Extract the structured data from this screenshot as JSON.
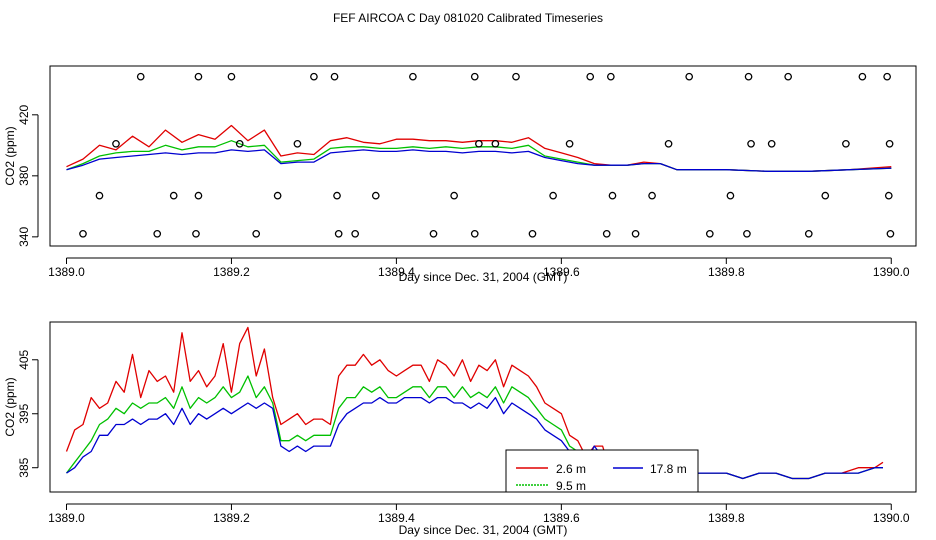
{
  "title": "FEF AIRCOA C  Day 081020  Calibrated Timeseries",
  "colors": {
    "s1": "#e00000",
    "s2": "#00c000",
    "s3": "#0000d0",
    "axis": "#000000"
  },
  "chart_data": [
    {
      "type": "line",
      "panel": "top",
      "xlabel": "Day since Dec. 31, 2004 (GMT)",
      "ylabel": "CO2 (ppm)",
      "xlim": [
        1388.98,
        1390.03
      ],
      "ylim": [
        334,
        452
      ],
      "xticks": [
        1389.0,
        1389.2,
        1389.4,
        1389.6,
        1389.8,
        1390.0
      ],
      "xtick_labels": [
        "1389.0",
        "1389.2",
        "1389.4",
        "1389.6",
        "1389.8",
        "1390.0"
      ],
      "yticks": [
        340,
        380,
        420
      ],
      "ytick_labels": [
        "340",
        "380",
        "420"
      ],
      "series": [
        {
          "name": "2.6 m",
          "color_key": "s1",
          "x": [
            1389.0,
            1389.02,
            1389.04,
            1389.06,
            1389.08,
            1389.1,
            1389.12,
            1389.14,
            1389.16,
            1389.18,
            1389.2,
            1389.22,
            1389.24,
            1389.26,
            1389.28,
            1389.3,
            1389.32,
            1389.34,
            1389.36,
            1389.38,
            1389.4,
            1389.42,
            1389.44,
            1389.46,
            1389.48,
            1389.5,
            1389.52,
            1389.54,
            1389.56,
            1389.58,
            1389.6,
            1389.62,
            1389.64,
            1389.66,
            1389.68,
            1389.7,
            1389.72,
            1389.74,
            1389.76,
            1389.78,
            1389.8,
            1389.85,
            1389.9,
            1389.95,
            1390.0
          ],
          "y": [
            386,
            391,
            400,
            397,
            406,
            399,
            410,
            402,
            407,
            404,
            413,
            403,
            410,
            393,
            395,
            394,
            403,
            405,
            402,
            401,
            404,
            404,
            403,
            403,
            402,
            403,
            403,
            402,
            405,
            398,
            395,
            392,
            388,
            387,
            387,
            389,
            388,
            384,
            384,
            384,
            384,
            383,
            383,
            384,
            386
          ]
        },
        {
          "name": "9.5 m",
          "color_key": "s2",
          "x": [
            1389.0,
            1389.02,
            1389.04,
            1389.06,
            1389.08,
            1389.1,
            1389.12,
            1389.14,
            1389.16,
            1389.18,
            1389.2,
            1389.22,
            1389.24,
            1389.26,
            1389.28,
            1389.3,
            1389.32,
            1389.34,
            1389.36,
            1389.38,
            1389.4,
            1389.42,
            1389.44,
            1389.46,
            1389.48,
            1389.5,
            1389.52,
            1389.54,
            1389.56,
            1389.58,
            1389.6,
            1389.62,
            1389.64,
            1389.66,
            1389.68,
            1389.7,
            1389.72,
            1389.74,
            1389.76,
            1389.78,
            1389.8,
            1389.85,
            1389.9,
            1389.95,
            1390.0
          ],
          "y": [
            384,
            388,
            393,
            395,
            396,
            396,
            400,
            397,
            399,
            399,
            403,
            399,
            400,
            389,
            390,
            391,
            398,
            399,
            399,
            398,
            398,
            399,
            398,
            399,
            398,
            399,
            399,
            398,
            400,
            393,
            391,
            389,
            387,
            387,
            387,
            388,
            388,
            384,
            384,
            384,
            384,
            383,
            383,
            384,
            385
          ]
        },
        {
          "name": "17.8 m",
          "color_key": "s3",
          "x": [
            1389.0,
            1389.02,
            1389.04,
            1389.06,
            1389.08,
            1389.1,
            1389.12,
            1389.14,
            1389.16,
            1389.18,
            1389.2,
            1389.22,
            1389.24,
            1389.26,
            1389.28,
            1389.3,
            1389.32,
            1389.34,
            1389.36,
            1389.38,
            1389.4,
            1389.42,
            1389.44,
            1389.46,
            1389.48,
            1389.5,
            1389.52,
            1389.54,
            1389.56,
            1389.58,
            1389.6,
            1389.62,
            1389.64,
            1389.66,
            1389.68,
            1389.7,
            1389.72,
            1389.74,
            1389.76,
            1389.78,
            1389.8,
            1389.85,
            1389.9,
            1389.95,
            1390.0
          ],
          "y": [
            384,
            387,
            391,
            392,
            393,
            394,
            395,
            394,
            395,
            395,
            397,
            396,
            397,
            388,
            389,
            389,
            395,
            396,
            397,
            396,
            396,
            397,
            396,
            396,
            395,
            396,
            396,
            395,
            396,
            392,
            390,
            388,
            387,
            387,
            387,
            388,
            388,
            384,
            384,
            384,
            384,
            383,
            383,
            384,
            385
          ]
        }
      ],
      "scatter": {
        "name": "markers",
        "x": [
          1389.02,
          1389.04,
          1389.06,
          1389.09,
          1389.11,
          1389.13,
          1389.157,
          1389.16,
          1389.16,
          1389.2,
          1389.21,
          1389.23,
          1389.256,
          1389.28,
          1389.3,
          1389.325,
          1389.328,
          1389.33,
          1389.35,
          1389.375,
          1389.42,
          1389.445,
          1389.47,
          1389.495,
          1389.495,
          1389.5,
          1389.52,
          1389.545,
          1389.565,
          1389.59,
          1389.61,
          1389.635,
          1389.655,
          1389.66,
          1389.662,
          1389.69,
          1389.71,
          1389.73,
          1389.755,
          1389.78,
          1389.805,
          1389.825,
          1389.827,
          1389.83,
          1389.855,
          1389.875,
          1389.9,
          1389.92,
          1389.945,
          1389.965,
          1389.995,
          1389.997,
          1389.998,
          1389.999
        ],
        "y": [
          342,
          367,
          401,
          445,
          342,
          367,
          342,
          445,
          367,
          445,
          401,
          342,
          367,
          401,
          445,
          445,
          367,
          342,
          342,
          367,
          445,
          342,
          367,
          445,
          342,
          401,
          401,
          445,
          342,
          367,
          401,
          445,
          342,
          445,
          367,
          342,
          367,
          401,
          445,
          342,
          367,
          342,
          445,
          401,
          401,
          445,
          342,
          367,
          401,
          445,
          445,
          367,
          401,
          342
        ]
      }
    },
    {
      "type": "line",
      "panel": "bottom",
      "xlabel": "Day since Dec. 31, 2004 (GMT)",
      "ylabel": "CO2 (ppm)",
      "xlim": [
        1388.98,
        1390.03
      ],
      "ylim": [
        380.5,
        412
      ],
      "xticks": [
        1389.0,
        1389.2,
        1389.4,
        1389.6,
        1389.8,
        1390.0
      ],
      "xtick_labels": [
        "1389.0",
        "1389.2",
        "1389.4",
        "1389.6",
        "1389.8",
        "1390.0"
      ],
      "yticks": [
        385,
        395,
        405
      ],
      "ytick_labels": [
        "385",
        "395",
        "405"
      ],
      "legend": {
        "position": "bottom-center",
        "entries": [
          {
            "label": "2.6 m",
            "color_key": "s1"
          },
          {
            "label": "9.5 m",
            "color_key": "s2"
          },
          {
            "label": "17.8 m",
            "color_key": "s3"
          }
        ]
      },
      "series": [
        {
          "name": "2.6 m",
          "color_key": "s1",
          "x": [
            1389.0,
            1389.01,
            1389.02,
            1389.03,
            1389.04,
            1389.05,
            1389.06,
            1389.07,
            1389.08,
            1389.09,
            1389.1,
            1389.11,
            1389.12,
            1389.13,
            1389.14,
            1389.15,
            1389.16,
            1389.17,
            1389.18,
            1389.19,
            1389.2,
            1389.21,
            1389.22,
            1389.23,
            1389.24,
            1389.25,
            1389.26,
            1389.27,
            1389.28,
            1389.29,
            1389.3,
            1389.31,
            1389.32,
            1389.33,
            1389.34,
            1389.35,
            1389.36,
            1389.37,
            1389.38,
            1389.39,
            1389.4,
            1389.41,
            1389.42,
            1389.43,
            1389.44,
            1389.45,
            1389.46,
            1389.47,
            1389.48,
            1389.49,
            1389.5,
            1389.51,
            1389.52,
            1389.53,
            1389.54,
            1389.55,
            1389.56,
            1389.57,
            1389.58,
            1389.59,
            1389.6,
            1389.61,
            1389.62,
            1389.63,
            1389.64,
            1389.65,
            1389.66,
            1389.67,
            1389.68,
            1389.69,
            1389.7,
            1389.71,
            1389.72,
            1389.73,
            1389.74,
            1389.75,
            1389.76,
            1389.78,
            1389.8,
            1389.82,
            1389.84,
            1389.86,
            1389.88,
            1389.9,
            1389.92,
            1389.94,
            1389.96,
            1389.98,
            1389.99
          ],
          "y": [
            388,
            392,
            393,
            398,
            396,
            397,
            401,
            399,
            406,
            398,
            403,
            401,
            402,
            399,
            410,
            401,
            403,
            400,
            402,
            408,
            399,
            408,
            411,
            402,
            407,
            398,
            393,
            394,
            395,
            393,
            394,
            394,
            393,
            402,
            404,
            404,
            406,
            404,
            405,
            403,
            402,
            403,
            404,
            404,
            401,
            405,
            404,
            402,
            405,
            401,
            404,
            403,
            405,
            400,
            404,
            403,
            402,
            400,
            397,
            396,
            395,
            391,
            390,
            387,
            389,
            389,
            384,
            388,
            388,
            388,
            388,
            386,
            385,
            384,
            384,
            384,
            384,
            384,
            384,
            383,
            384,
            384,
            383,
            383,
            384,
            384,
            385,
            385,
            386
          ]
        },
        {
          "name": "9.5 m",
          "color_key": "s2",
          "x": [
            1389.0,
            1389.01,
            1389.02,
            1389.03,
            1389.04,
            1389.05,
            1389.06,
            1389.07,
            1389.08,
            1389.09,
            1389.1,
            1389.11,
            1389.12,
            1389.13,
            1389.14,
            1389.15,
            1389.16,
            1389.17,
            1389.18,
            1389.19,
            1389.2,
            1389.21,
            1389.22,
            1389.23,
            1389.24,
            1389.25,
            1389.26,
            1389.27,
            1389.28,
            1389.29,
            1389.3,
            1389.31,
            1389.32,
            1389.33,
            1389.34,
            1389.35,
            1389.36,
            1389.37,
            1389.38,
            1389.39,
            1389.4,
            1389.41,
            1389.42,
            1389.43,
            1389.44,
            1389.45,
            1389.46,
            1389.47,
            1389.48,
            1389.49,
            1389.5,
            1389.51,
            1389.52,
            1389.53,
            1389.54,
            1389.55,
            1389.56,
            1389.57,
            1389.58,
            1389.59,
            1389.6,
            1389.61,
            1389.62,
            1389.63,
            1389.64,
            1389.65,
            1389.66,
            1389.67,
            1389.68,
            1389.69,
            1389.7,
            1389.71,
            1389.72,
            1389.73,
            1389.74,
            1389.75,
            1389.76,
            1389.78,
            1389.8,
            1389.82,
            1389.84,
            1389.86,
            1389.88,
            1389.9,
            1389.92,
            1389.94,
            1389.96,
            1389.98,
            1389.99
          ],
          "y": [
            384,
            386,
            388,
            390,
            393,
            394,
            396,
            395,
            397,
            396,
            397,
            397,
            398,
            396,
            400,
            396,
            398,
            397,
            398,
            400,
            398,
            399,
            402,
            398,
            400,
            397,
            390,
            390,
            391,
            390,
            391,
            391,
            391,
            396,
            398,
            398,
            400,
            399,
            400,
            398,
            398,
            399,
            400,
            400,
            398,
            400,
            400,
            398,
            400,
            398,
            399,
            398,
            400,
            397,
            400,
            399,
            398,
            396,
            394,
            393,
            392,
            389,
            388,
            387,
            388,
            388,
            386,
            387,
            388,
            388,
            388,
            386,
            385,
            384,
            384,
            384,
            384,
            384,
            384,
            383,
            384,
            384,
            383,
            383,
            384,
            384,
            384,
            385,
            385
          ]
        },
        {
          "name": "17.8 m",
          "color_key": "s3",
          "x": [
            1389.0,
            1389.01,
            1389.02,
            1389.03,
            1389.04,
            1389.05,
            1389.06,
            1389.07,
            1389.08,
            1389.09,
            1389.1,
            1389.11,
            1389.12,
            1389.13,
            1389.14,
            1389.15,
            1389.16,
            1389.17,
            1389.18,
            1389.19,
            1389.2,
            1389.21,
            1389.22,
            1389.23,
            1389.24,
            1389.25,
            1389.26,
            1389.27,
            1389.28,
            1389.29,
            1389.3,
            1389.31,
            1389.32,
            1389.33,
            1389.34,
            1389.35,
            1389.36,
            1389.37,
            1389.38,
            1389.39,
            1389.4,
            1389.41,
            1389.42,
            1389.43,
            1389.44,
            1389.45,
            1389.46,
            1389.47,
            1389.48,
            1389.49,
            1389.5,
            1389.51,
            1389.52,
            1389.53,
            1389.54,
            1389.55,
            1389.56,
            1389.57,
            1389.58,
            1389.59,
            1389.6,
            1389.61,
            1389.62,
            1389.63,
            1389.64,
            1389.65,
            1389.66,
            1389.67,
            1389.68,
            1389.69,
            1389.7,
            1389.71,
            1389.72,
            1389.73,
            1389.74,
            1389.75,
            1389.76,
            1389.78,
            1389.8,
            1389.82,
            1389.84,
            1389.86,
            1389.88,
            1389.9,
            1389.92,
            1389.94,
            1389.96,
            1389.98,
            1389.99
          ],
          "y": [
            384,
            385,
            387,
            388,
            391,
            391,
            393,
            393,
            394,
            393,
            394,
            394,
            395,
            393,
            396,
            393,
            395,
            394,
            395,
            396,
            395,
            396,
            397,
            396,
            397,
            396,
            389,
            388,
            389,
            388,
            389,
            389,
            389,
            393,
            395,
            396,
            397,
            397,
            398,
            397,
            397,
            398,
            398,
            398,
            397,
            398,
            398,
            397,
            397,
            396,
            397,
            396,
            398,
            395,
            397,
            396,
            395,
            394,
            392,
            391,
            390,
            388,
            387,
            386,
            389,
            387,
            386,
            387,
            388,
            388,
            388,
            386,
            385,
            384,
            384,
            384,
            384,
            384,
            384,
            383,
            384,
            384,
            383,
            383,
            384,
            384,
            384,
            385,
            385
          ]
        }
      ]
    }
  ]
}
